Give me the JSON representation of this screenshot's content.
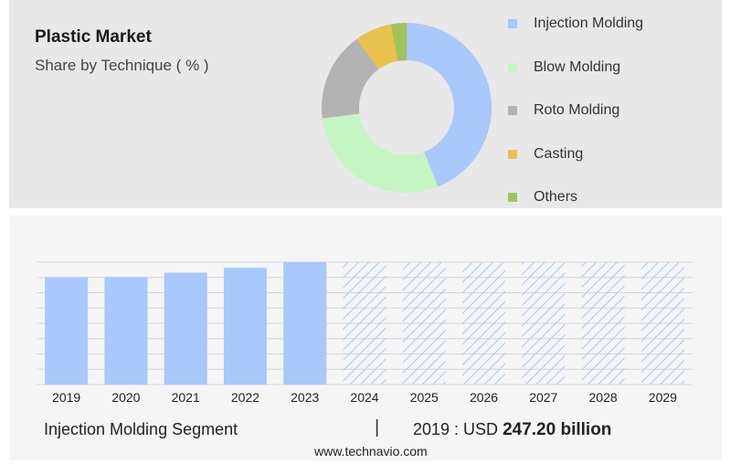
{
  "header": {
    "title": "Plastic Market",
    "subtitle": "Share by Technique ( % )"
  },
  "chart_data": [
    {
      "type": "pie",
      "variant": "donut",
      "categories": [
        "Injection Molding",
        "Blow Molding",
        "Roto Molding",
        "Casting",
        "Others"
      ],
      "values": [
        44,
        29,
        17,
        7,
        3
      ],
      "colors": [
        "#a9c8fb",
        "#c4f5c3",
        "#b3b3b3",
        "#e9c24d",
        "#9fc45c"
      ],
      "legend_position": "right"
    },
    {
      "type": "bar",
      "categories": [
        "2019",
        "2020",
        "2021",
        "2022",
        "2023",
        "2024",
        "2025",
        "2026",
        "2027",
        "2028",
        "2029"
      ],
      "values": [
        247.2,
        247.5,
        258,
        269,
        282,
        282,
        282,
        282,
        282,
        282,
        282
      ],
      "forecast_from_index": 5,
      "ylim": [
        0,
        282
      ],
      "grid": true,
      "colors": {
        "actual": "#a9c8fb",
        "forecast_hatch": "#a9c8fb"
      }
    }
  ],
  "footer": {
    "segment": "Injection Molding Segment",
    "separator": "|",
    "value_prefix": "2019 : USD",
    "value_bold": "247.20 billion",
    "source": "www.technavio.com"
  }
}
